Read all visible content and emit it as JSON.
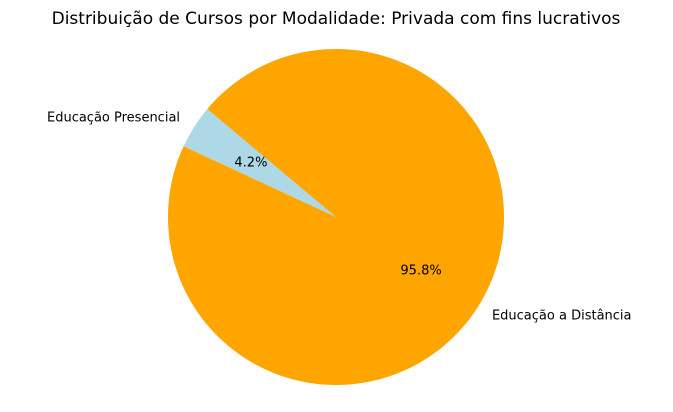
{
  "chart_data": {
    "type": "pie",
    "title": "Distribuição de Cursos por Modalidade: Privada com fins lucrativos",
    "slices": [
      {
        "label": "Educação Presencial",
        "value": 4.2,
        "pct_label": "4.2%",
        "color": "#add8e6"
      },
      {
        "label": "Educação a Distância",
        "value": 95.8,
        "pct_label": "95.8%",
        "color": "#ffa500"
      }
    ],
    "start_angle_deg": 140,
    "legend": "none"
  }
}
